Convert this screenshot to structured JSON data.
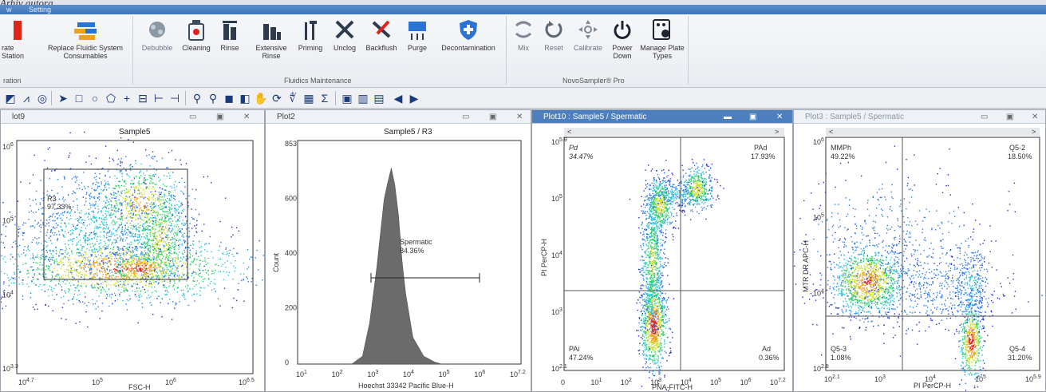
{
  "caption": "Arhiv autora.",
  "menu": [
    {
      "label": "w",
      "name": "menu-view"
    },
    {
      "label": "Setting",
      "name": "menu-setting"
    }
  ],
  "ribbon": {
    "groups": [
      {
        "label": "ration"
      },
      {
        "label": "Fluidics Maintenance"
      },
      {
        "label": "NovoSampler® Pro"
      }
    ],
    "buttons": [
      {
        "label": "rate Station",
        "name": "calibrate-station-button",
        "icon": "station-icon"
      },
      {
        "label": "Replace Fluidic System Consumables",
        "name": "replace-fluidic-button",
        "icon": "replace-fluidic-icon"
      },
      {
        "label": "Debubble",
        "name": "debubble-button",
        "icon": "debubble-icon"
      },
      {
        "label": "Cleaning",
        "name": "cleaning-button",
        "icon": "cleaning-icon"
      },
      {
        "label": "Rinse",
        "name": "rinse-button",
        "icon": "rinse-icon"
      },
      {
        "label": "Extensive Rinse",
        "name": "extensive-rinse-button",
        "icon": "extensive-rinse-icon"
      },
      {
        "label": "Priming",
        "name": "priming-button",
        "icon": "priming-icon"
      },
      {
        "label": "Unclog",
        "name": "unclog-button",
        "icon": "unclog-icon"
      },
      {
        "label": "Backflush",
        "name": "backflush-button",
        "icon": "backflush-icon"
      },
      {
        "label": "Purge",
        "name": "purge-button",
        "icon": "purge-icon"
      },
      {
        "label": "Decontamination",
        "name": "decontamination-button",
        "icon": "shield-plus-icon"
      },
      {
        "label": "Mix",
        "name": "mix-button",
        "icon": "mix-icon"
      },
      {
        "label": "Reset",
        "name": "reset-button",
        "icon": "reset-icon"
      },
      {
        "label": "Calibrate",
        "name": "calibrate-button",
        "icon": "calibrate-icon"
      },
      {
        "label": "Power Down",
        "name": "power-down-button",
        "icon": "power-icon"
      },
      {
        "label": "Manage Plate Types",
        "name": "manage-plate-types-button",
        "icon": "plate-gear-icon"
      }
    ]
  },
  "panels": [
    {
      "title": "lot9",
      "sample": "Sample5",
      "chart_data": {
        "type": "scatter",
        "title": "Sample5",
        "xlabel": "FSC-H",
        "ylabel": "",
        "x_ticks": [
          "10^4.7",
          "10^5",
          "10^6",
          "10^6.5"
        ],
        "y_ticks": [
          "10^6",
          "10^5",
          "10^4",
          "10^3.3"
        ],
        "gates": [
          {
            "name": "R3",
            "percent": "97.33%"
          }
        ]
      }
    },
    {
      "title": "Plot2",
      "chart_data": {
        "type": "area",
        "title": "Sample5 / R3",
        "xlabel": "Hoechst 33342 Pacific Blue-H",
        "ylabel": "Count",
        "ylim": [
          0,
          853
        ],
        "y_ticks": [
          "853",
          "600",
          "400",
          "200",
          "0"
        ],
        "x_ticks": [
          "10^1",
          "10^2",
          "10^3",
          "10^4",
          "10^5",
          "10^6",
          "10^7.2"
        ],
        "gates": [
          {
            "name": "Spermatic",
            "percent": "84.36%"
          }
        ],
        "x": [
          2.5,
          2.8,
          3.0,
          3.2,
          3.4,
          3.5,
          3.6,
          3.7,
          3.8,
          3.9,
          4.0,
          4.2,
          4.5,
          4.8,
          5.0
        ],
        "values": [
          0,
          30,
          150,
          380,
          620,
          700,
          740,
          690,
          560,
          400,
          260,
          110,
          30,
          8,
          0
        ]
      }
    },
    {
      "title": "Plot10 : Sample5 / Spermatic",
      "chart_data": {
        "type": "scatter",
        "title": "",
        "xlabel": "PNA-FITC-H",
        "ylabel": "PI PerCP-H",
        "x_ticks": [
          "0",
          "10^1",
          "10^2",
          "10^3",
          "10^4",
          "10^5",
          "10^6",
          "10^7.2"
        ],
        "y_ticks": [
          "10^5.9",
          "10^5",
          "10^4",
          "10^3",
          "10^2.1"
        ],
        "quadrants": [
          {
            "name": "Pd",
            "percent": "34.47%"
          },
          {
            "name": "PAd",
            "percent": "17.93%"
          },
          {
            "name": "PAi",
            "percent": "47.24%"
          },
          {
            "name": "Ad",
            "percent": "0.36%"
          }
        ]
      }
    },
    {
      "title": "Plot3 : Sample5 / Spermatic",
      "chart_data": {
        "type": "scatter",
        "title": "",
        "xlabel": "PI PerCP-H",
        "ylabel": "MTR DR APC-H",
        "x_ticks": [
          "10^2.1",
          "10^3",
          "10^4",
          "10^5",
          "10^5.9"
        ],
        "y_ticks": [
          "10^6",
          "10^5",
          "10^4",
          "10^2.8"
        ],
        "quadrants": [
          {
            "name": "MMPh",
            "percent": "49.22%"
          },
          {
            "name": "Q5-2",
            "percent": "18.50%"
          },
          {
            "name": "Q5-3",
            "percent": "1.08%"
          },
          {
            "name": "Q5-4",
            "percent": "31.20%"
          }
        ]
      }
    }
  ],
  "colors": {
    "active_title": "#4d7fbe",
    "histogram": "#6b6b6b",
    "density_low": "#1f2bd6",
    "density_high": "#e02020"
  }
}
